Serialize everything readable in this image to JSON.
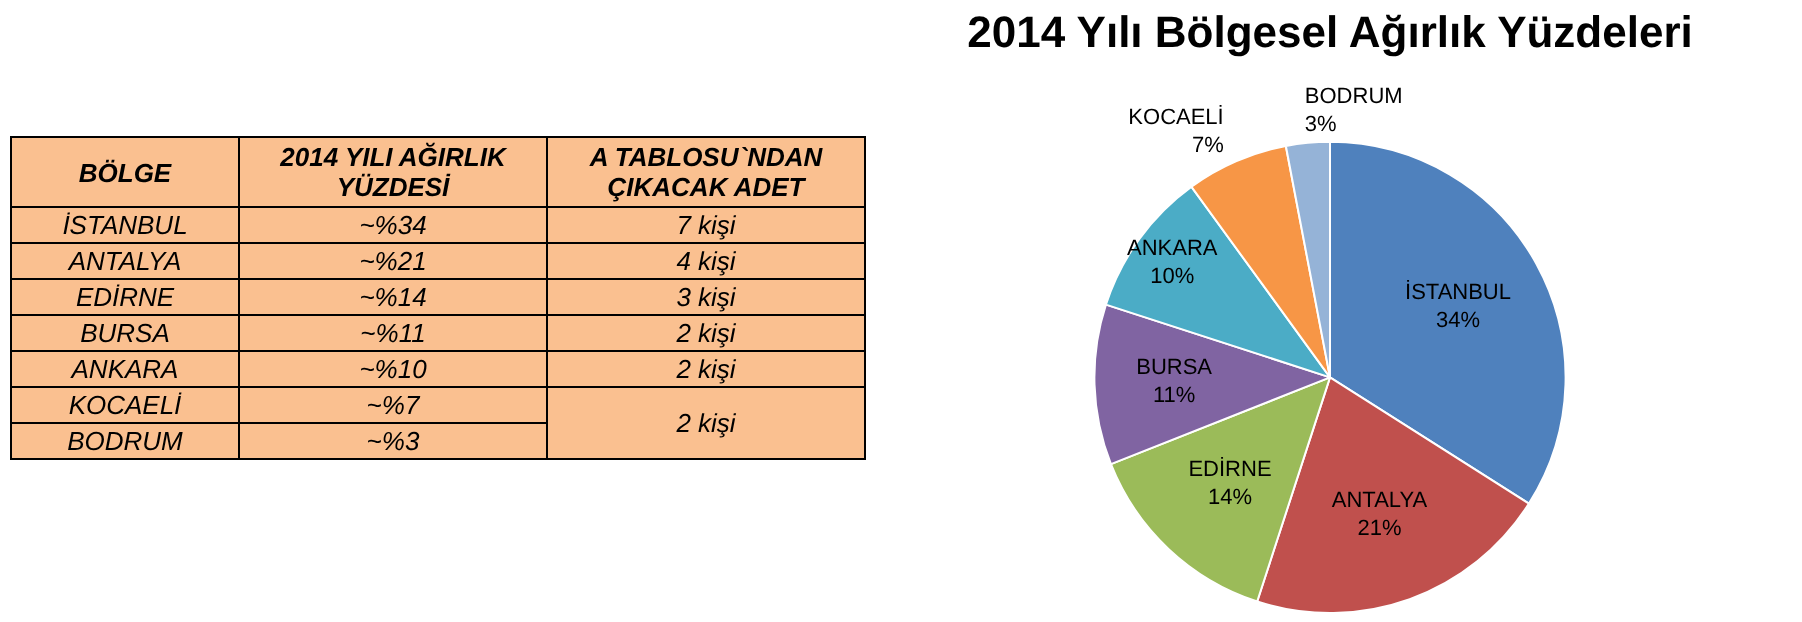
{
  "chart_data": [
    {
      "type": "other",
      "categories": [
        "BÖLGE",
        "2014 YILI AĞIRLIK YÜZDESİ",
        "A TABLOSU`NDAN ÇIKACAK ADET"
      ],
      "y_categories": [
        "İSTANBUL",
        "ANTALYA",
        "EDİRNE",
        "BURSA",
        "ANKARA",
        "KOCAELİ",
        "BODRUM"
      ],
      "cell_labels": [
        [
          "~%34",
          "7 kişi"
        ],
        [
          "~%21",
          "4 kişi"
        ],
        [
          "~%14",
          "3 kişi"
        ],
        [
          "~%11",
          "2 kişi"
        ],
        [
          "~%10",
          "2 kişi"
        ],
        [
          "~%7",
          "2 kişi"
        ],
        [
          "~%3",
          null
        ]
      ]
    },
    {
      "type": "pie",
      "title": "2014 Yılı Bölgesel Ağırlık Yüzdeleri",
      "categories": [
        "İSTANBUL",
        "ANTALYA",
        "EDİRNE",
        "BURSA",
        "ANKARA",
        "KOCAELİ",
        "BODRUM"
      ],
      "values": [
        34,
        21,
        14,
        11,
        10,
        7,
        3
      ],
      "colors": [
        "#4f81bd",
        "#c0504d",
        "#9bbb59",
        "#8064a2",
        "#4bacc6",
        "#f79646",
        "#95b3d7"
      ],
      "value_labels": [
        "34%",
        "21%",
        "14%",
        "11%",
        "10%",
        "7%",
        "3%"
      ],
      "data_labels": true,
      "legend": false
    }
  ]
}
